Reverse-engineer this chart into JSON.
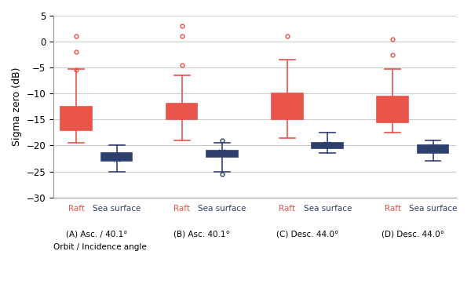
{
  "ylabel": "Sigma zero (dB)",
  "xlabel": "Orbit / Incidence angle",
  "ylim": [
    -30,
    5
  ],
  "yticks": [
    5,
    0,
    -5,
    -10,
    -15,
    -20,
    -25,
    -30
  ],
  "group_labels": [
    "(A) Asc. / 40.1°",
    "(B) Asc. 40.1°",
    "(C) Desc. 44.0°",
    "(D) Desc. 44.0°"
  ],
  "red_color": "#E8534A",
  "blue_color": "#2E3F6E",
  "red_face": "#FFFFFF",
  "blue_face": "#FFFFFF",
  "group_centers": [
    1.0,
    3.2,
    5.4,
    7.6
  ],
  "offsets": [
    -0.42,
    0.42
  ],
  "box_width": 0.65,
  "boxes": {
    "A_raft": {
      "q1": -17.0,
      "median": -15.5,
      "q3": -12.5,
      "whislo": -19.5,
      "whishi": -5.3,
      "mean": -13.8,
      "fliers": [
        1.0,
        -2.0,
        -5.5
      ]
    },
    "A_sea": {
      "q1": -23.0,
      "median": -22.5,
      "q3": -21.5,
      "whislo": -25.0,
      "whishi": -20.0,
      "mean": -22.5,
      "fliers": []
    },
    "B_raft": {
      "q1": -15.0,
      "median": -14.5,
      "q3": -12.0,
      "whislo": -19.0,
      "whishi": -6.5,
      "mean": -13.3,
      "fliers": [
        3.0,
        1.0,
        -4.5
      ]
    },
    "B_sea": {
      "q1": -22.2,
      "median": -21.5,
      "q3": -21.0,
      "whislo": -25.0,
      "whishi": -19.5,
      "mean": -21.5,
      "fliers": [
        -19.0,
        -25.5
      ]
    },
    "C_raft": {
      "q1": -15.0,
      "median": -14.0,
      "q3": -10.0,
      "whislo": -18.5,
      "whishi": -3.5,
      "mean": -12.5,
      "fliers": [
        1.0
      ]
    },
    "C_sea": {
      "q1": -20.5,
      "median": -20.0,
      "q3": -19.5,
      "whislo": -21.5,
      "whishi": -17.5,
      "mean": -20.0,
      "fliers": []
    },
    "D_raft": {
      "q1": -15.5,
      "median": -14.5,
      "q3": -10.5,
      "whislo": -17.5,
      "whishi": -5.3,
      "mean": -12.8,
      "fliers": [
        0.5,
        -2.5
      ]
    },
    "D_sea": {
      "q1": -21.5,
      "median": -21.0,
      "q3": -20.0,
      "whislo": -23.0,
      "whishi": -19.0,
      "mean": -20.5,
      "fliers": []
    }
  }
}
